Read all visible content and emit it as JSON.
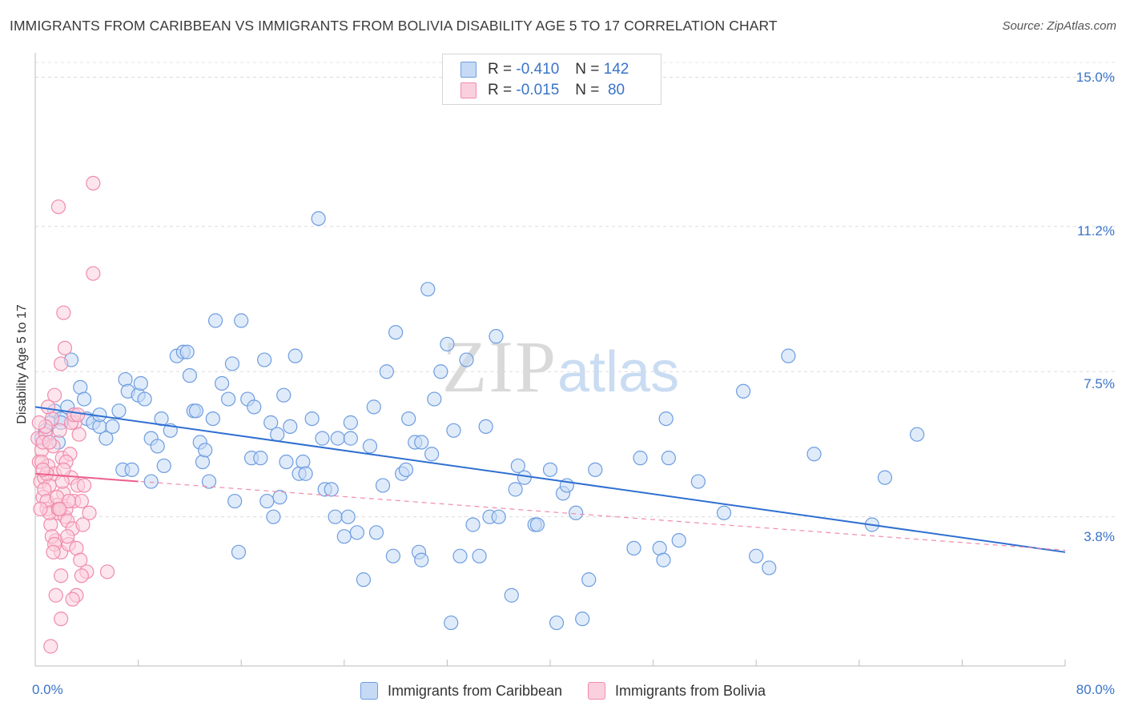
{
  "title": "IMMIGRANTS FROM CARIBBEAN VS IMMIGRANTS FROM BOLIVIA DISABILITY AGE 5 TO 17 CORRELATION CHART",
  "source": "Source: ZipAtlas.com",
  "watermark": {
    "zip": "ZIP",
    "atlas": "atlas"
  },
  "legend_top": {
    "rows": [
      {
        "r_label": "R =",
        "r_value": "-0.410",
        "n_label": "N =",
        "n_value": "142",
        "color": "#6d9de0",
        "fill": "#c6daf5"
      },
      {
        "r_label": "R =",
        "r_value": "-0.015",
        "n_label": "N =",
        "n_value": "80",
        "color": "#f08cab",
        "fill": "#fbd0de"
      }
    ]
  },
  "chart_data": {
    "type": "scatter",
    "title": "IMMIGRANTS FROM CARIBBEAN VS IMMIGRANTS FROM BOLIVIA DISABILITY AGE 5 TO 17 CORRELATION CHART",
    "xlabel": "",
    "ylabel": "Disability Age 5 to 17",
    "xlim": [
      0,
      80
    ],
    "ylim": [
      0,
      15.5
    ],
    "x_tick_labels": [
      "0.0%",
      "80.0%"
    ],
    "y_tick_labels": [
      "3.8%",
      "7.5%",
      "11.2%",
      "15.0%"
    ],
    "y_ticks": [
      3.8,
      7.5,
      11.2,
      15.0
    ],
    "grid": "horizontal dashed",
    "legend_placement": "bottom",
    "series": [
      {
        "name": "Immigrants from Caribbean",
        "color": "#6d9de0",
        "fill": "#c6daf5",
        "trend": {
          "x": [
            0,
            80
          ],
          "y": [
            6.6,
            2.9
          ],
          "style": "solid"
        },
        "points": [
          [
            0.5,
            5.8
          ],
          [
            0.8,
            6.0
          ],
          [
            1.2,
            6.2
          ],
          [
            1.5,
            6.5
          ],
          [
            1.8,
            5.7
          ],
          [
            2.0,
            6.3
          ],
          [
            2.5,
            6.6
          ],
          [
            2.8,
            7.8
          ],
          [
            3.0,
            6.4
          ],
          [
            3.5,
            7.1
          ],
          [
            3.8,
            6.8
          ],
          [
            4.0,
            6.3
          ],
          [
            4.5,
            6.2
          ],
          [
            5.0,
            6.1
          ],
          [
            5.5,
            5.8
          ],
          [
            5.0,
            6.4
          ],
          [
            6.0,
            6.1
          ],
          [
            6.5,
            6.5
          ],
          [
            6.8,
            5.0
          ],
          [
            7.0,
            7.3
          ],
          [
            7.2,
            7.0
          ],
          [
            7.5,
            5.0
          ],
          [
            8.0,
            6.9
          ],
          [
            8.2,
            7.2
          ],
          [
            8.5,
            6.8
          ],
          [
            9.0,
            5.8
          ],
          [
            9.5,
            5.6
          ],
          [
            9.8,
            6.3
          ],
          [
            10.0,
            5.1
          ],
          [
            10.5,
            6.0
          ],
          [
            11.0,
            7.9
          ],
          [
            11.5,
            8.0
          ],
          [
            11.8,
            8.0
          ],
          [
            12.0,
            7.4
          ],
          [
            12.3,
            6.5
          ],
          [
            12.5,
            6.5
          ],
          [
            12.8,
            5.7
          ],
          [
            13.0,
            5.2
          ],
          [
            13.2,
            5.5
          ],
          [
            13.5,
            4.7
          ],
          [
            13.8,
            6.3
          ],
          [
            14.0,
            8.8
          ],
          [
            14.5,
            7.2
          ],
          [
            15.0,
            6.8
          ],
          [
            15.3,
            7.7
          ],
          [
            15.5,
            4.2
          ],
          [
            15.8,
            2.9
          ],
          [
            16.0,
            8.8
          ],
          [
            16.5,
            6.8
          ],
          [
            16.8,
            5.3
          ],
          [
            17.0,
            6.6
          ],
          [
            17.5,
            5.3
          ],
          [
            17.8,
            7.8
          ],
          [
            18.0,
            4.2
          ],
          [
            18.3,
            6.2
          ],
          [
            18.5,
            3.8
          ],
          [
            18.8,
            5.9
          ],
          [
            19.0,
            4.3
          ],
          [
            19.3,
            6.9
          ],
          [
            19.5,
            5.2
          ],
          [
            19.8,
            6.1
          ],
          [
            20.2,
            7.9
          ],
          [
            20.5,
            4.9
          ],
          [
            20.8,
            5.2
          ],
          [
            21.0,
            4.9
          ],
          [
            21.5,
            6.3
          ],
          [
            22.0,
            11.4
          ],
          [
            22.3,
            5.8
          ],
          [
            22.5,
            4.5
          ],
          [
            23.0,
            4.5
          ],
          [
            23.3,
            3.8
          ],
          [
            23.5,
            5.8
          ],
          [
            24.0,
            3.3
          ],
          [
            24.3,
            3.8
          ],
          [
            24.5,
            6.2
          ],
          [
            25.0,
            3.4
          ],
          [
            25.5,
            2.2
          ],
          [
            26.0,
            5.6
          ],
          [
            26.3,
            6.6
          ],
          [
            26.5,
            3.4
          ],
          [
            27.0,
            4.6
          ],
          [
            27.3,
            7.5
          ],
          [
            27.8,
            2.8
          ],
          [
            28.0,
            8.5
          ],
          [
            28.5,
            4.9
          ],
          [
            28.8,
            5.0
          ],
          [
            29.0,
            6.3
          ],
          [
            29.5,
            5.7
          ],
          [
            29.8,
            2.9
          ],
          [
            30.0,
            2.7
          ],
          [
            30.5,
            9.6
          ],
          [
            30.8,
            5.4
          ],
          [
            31.0,
            6.8
          ],
          [
            31.5,
            7.5
          ],
          [
            32.0,
            8.2
          ],
          [
            32.3,
            1.1
          ],
          [
            32.5,
            6.0
          ],
          [
            33.0,
            2.8
          ],
          [
            33.5,
            7.8
          ],
          [
            34.0,
            3.6
          ],
          [
            34.5,
            2.8
          ],
          [
            35.0,
            6.1
          ],
          [
            35.3,
            3.8
          ],
          [
            35.8,
            8.4
          ],
          [
            36.0,
            3.8
          ],
          [
            37.0,
            1.8
          ],
          [
            37.3,
            4.5
          ],
          [
            37.5,
            5.1
          ],
          [
            38.0,
            4.8
          ],
          [
            38.8,
            3.6
          ],
          [
            39.0,
            3.6
          ],
          [
            40.0,
            5.0
          ],
          [
            41.0,
            4.4
          ],
          [
            41.3,
            4.6
          ],
          [
            42.0,
            3.9
          ],
          [
            42.5,
            1.2
          ],
          [
            43.0,
            2.2
          ],
          [
            43.5,
            5.0
          ],
          [
            46.5,
            3.0
          ],
          [
            47.0,
            5.3
          ],
          [
            48.5,
            3.0
          ],
          [
            48.8,
            2.7
          ],
          [
            49.0,
            6.3
          ],
          [
            49.2,
            5.3
          ],
          [
            50.0,
            3.2
          ],
          [
            51.5,
            4.7
          ],
          [
            53.5,
            3.9
          ],
          [
            55.0,
            7.0
          ],
          [
            56.0,
            2.8
          ],
          [
            57.0,
            2.5
          ],
          [
            58.5,
            7.9
          ],
          [
            60.5,
            5.4
          ],
          [
            65.0,
            3.6
          ],
          [
            66.0,
            4.8
          ],
          [
            68.5,
            5.9
          ],
          [
            40.5,
            1.1
          ],
          [
            24.5,
            5.8
          ],
          [
            9.0,
            4.7
          ],
          [
            2.0,
            6.2
          ],
          [
            30.0,
            5.7
          ]
        ]
      },
      {
        "name": "Immigrants from Bolivia",
        "color": "#f08cab",
        "fill": "#fbd0de",
        "trend": {
          "x": [
            0,
            8
          ],
          "y": [
            4.9,
            4.7
          ],
          "style": "solid",
          "extended": {
            "x": [
              0,
              80
            ],
            "y": [
              4.9,
              2.95
            ],
            "style": "dashed"
          }
        },
        "points": [
          [
            0.2,
            5.8
          ],
          [
            0.3,
            5.2
          ],
          [
            0.4,
            4.7
          ],
          [
            0.5,
            5.5
          ],
          [
            0.6,
            4.3
          ],
          [
            0.7,
            4.8
          ],
          [
            0.8,
            5.9
          ],
          [
            0.9,
            4.0
          ],
          [
            1.0,
            5.1
          ],
          [
            1.1,
            4.6
          ],
          [
            1.2,
            3.6
          ],
          [
            1.3,
            6.3
          ],
          [
            1.4,
            5.6
          ],
          [
            1.5,
            4.9
          ],
          [
            1.6,
            3.2
          ],
          [
            1.7,
            4.1
          ],
          [
            1.8,
            3.9
          ],
          [
            1.9,
            6.0
          ],
          [
            2.0,
            2.9
          ],
          [
            2.1,
            5.3
          ],
          [
            2.2,
            4.4
          ],
          [
            2.3,
            3.8
          ],
          [
            2.4,
            4.0
          ],
          [
            2.5,
            3.7
          ],
          [
            2.6,
            3.1
          ],
          [
            2.7,
            5.4
          ],
          [
            2.8,
            4.8
          ],
          [
            2.9,
            3.5
          ],
          [
            3.0,
            4.2
          ],
          [
            3.1,
            6.2
          ],
          [
            3.2,
            3.0
          ],
          [
            3.3,
            4.6
          ],
          [
            3.4,
            5.9
          ],
          [
            3.5,
            2.7
          ],
          [
            3.6,
            4.2
          ],
          [
            3.7,
            3.6
          ],
          [
            1.8,
            11.7
          ],
          [
            4.5,
            12.3
          ],
          [
            4.5,
            10.0
          ],
          [
            2.2,
            9.0
          ],
          [
            2.3,
            8.1
          ],
          [
            2.0,
            7.7
          ],
          [
            1.5,
            6.9
          ],
          [
            1.0,
            6.6
          ],
          [
            0.8,
            6.1
          ],
          [
            0.6,
            5.7
          ],
          [
            0.5,
            5.2
          ],
          [
            0.7,
            4.5
          ],
          [
            0.9,
            4.2
          ],
          [
            1.1,
            3.9
          ],
          [
            1.3,
            3.3
          ],
          [
            1.5,
            3.1
          ],
          [
            1.8,
            4.0
          ],
          [
            2.1,
            4.7
          ],
          [
            2.4,
            5.2
          ],
          [
            2.8,
            6.2
          ],
          [
            3.0,
            6.4
          ],
          [
            3.3,
            6.4
          ],
          [
            1.6,
            1.8
          ],
          [
            2.0,
            1.2
          ],
          [
            1.2,
            0.5
          ],
          [
            5.6,
            2.4
          ],
          [
            4.0,
            2.4
          ],
          [
            3.2,
            1.8
          ],
          [
            2.5,
            3.3
          ],
          [
            2.0,
            2.3
          ],
          [
            1.4,
            2.9
          ],
          [
            0.9,
            4.9
          ],
          [
            0.4,
            4.0
          ],
          [
            0.3,
            6.2
          ],
          [
            1.7,
            4.3
          ],
          [
            2.6,
            4.2
          ],
          [
            3.8,
            4.6
          ],
          [
            4.2,
            3.9
          ],
          [
            3.6,
            2.3
          ],
          [
            2.9,
            1.7
          ],
          [
            1.9,
            4.0
          ],
          [
            1.1,
            5.7
          ],
          [
            0.6,
            5.0
          ],
          [
            2.2,
            5.0
          ]
        ]
      }
    ]
  },
  "bottom_legend": [
    {
      "label": "Immigrants from Caribbean",
      "color": "#6d9de0",
      "fill": "#c6daf5"
    },
    {
      "label": "Immigrants from Bolivia",
      "color": "#f08cab",
      "fill": "#fbd0de"
    }
  ]
}
